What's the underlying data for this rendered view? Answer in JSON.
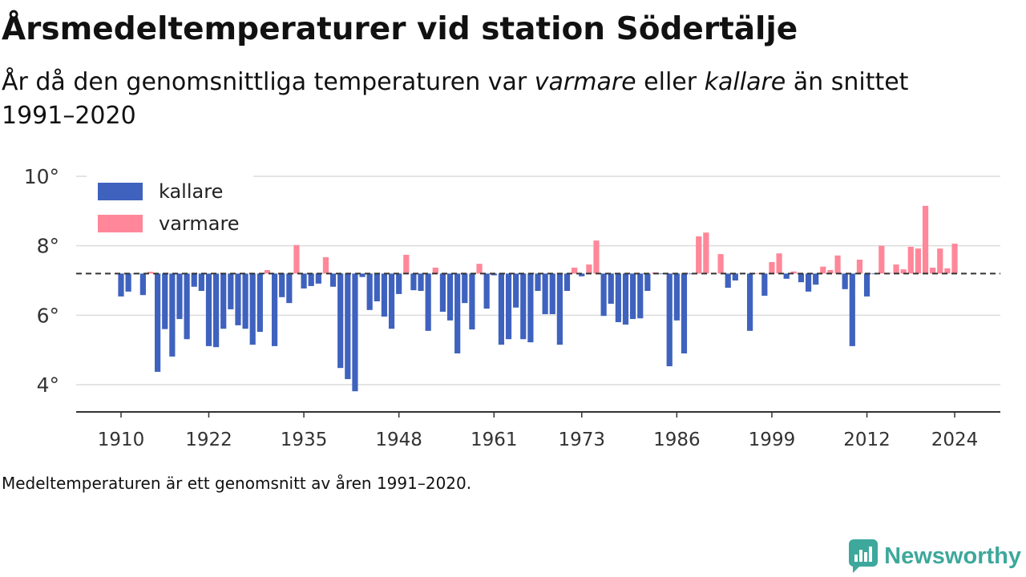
{
  "chart_data": {
    "type": "bar",
    "title": "Årsmedeltemperaturer vid station Södertälje",
    "subtitle": [
      "År då den genomsnittliga temperaturen var ",
      "varmare",
      " eller ",
      "kallare",
      " än snittet",
      "1991–2020"
    ],
    "note": "Medeltemperaturen är ett genomsnitt av åren 1991–2020.",
    "x": [
      1910,
      1911,
      1912,
      1913,
      1914,
      1915,
      1916,
      1917,
      1918,
      1919,
      1920,
      1921,
      1922,
      1923,
      1924,
      1925,
      1926,
      1927,
      1928,
      1929,
      1930,
      1931,
      1932,
      1933,
      1934,
      1935,
      1936,
      1937,
      1938,
      1939,
      1940,
      1941,
      1942,
      1943,
      1944,
      1945,
      1946,
      1947,
      1948,
      1949,
      1950,
      1951,
      1952,
      1953,
      1954,
      1955,
      1956,
      1957,
      1958,
      1959,
      1960,
      1961,
      1962,
      1963,
      1964,
      1965,
      1966,
      1967,
      1968,
      1969,
      1970,
      1971,
      1972,
      1973,
      1974,
      1975,
      1976,
      1977,
      1978,
      1979,
      1980,
      1981,
      1982,
      1983,
      1984,
      1985,
      1986,
      1987,
      1988,
      1989,
      1990,
      1991,
      1992,
      1993,
      1994,
      1995,
      1996,
      1997,
      1998,
      1999,
      2000,
      2001,
      2002,
      2003,
      2004,
      2005,
      2006,
      2007,
      2008,
      2009,
      2010,
      2011,
      2012,
      2013,
      2014,
      2015,
      2016,
      2017,
      2018,
      2019,
      2020,
      2021,
      2022,
      2023,
      2024
    ],
    "values": [
      6.54,
      6.68,
      7.18,
      6.58,
      7.25,
      4.37,
      5.6,
      4.81,
      5.89,
      5.31,
      6.82,
      6.7,
      5.11,
      5.08,
      5.61,
      6.17,
      5.71,
      5.61,
      5.15,
      5.52,
      7.3,
      5.11,
      6.52,
      6.35,
      8.02,
      6.77,
      6.84,
      6.91,
      7.67,
      6.82,
      4.48,
      4.16,
      3.81,
      7.1,
      6.15,
      6.4,
      5.96,
      5.61,
      6.61,
      7.74,
      6.72,
      6.7,
      5.55,
      7.37,
      6.1,
      5.85,
      4.9,
      6.35,
      5.59,
      7.48,
      6.19,
      7.15,
      5.15,
      5.31,
      6.22,
      5.31,
      5.22,
      6.7,
      6.03,
      6.03,
      5.15,
      6.7,
      7.37,
      7.12,
      7.46,
      8.15,
      5.98,
      6.33,
      5.8,
      5.73,
      5.89,
      5.91,
      6.7,
      7.23,
      7.19,
      4.53,
      5.85,
      4.9,
      7.18,
      8.27,
      8.38,
      7.22,
      7.76,
      6.79,
      7.0,
      7.19,
      5.55,
      7.21,
      6.56,
      7.53,
      7.78,
      7.05,
      7.26,
      6.95,
      6.68,
      6.88,
      7.4,
      7.3,
      7.72,
      6.75,
      5.11,
      7.6,
      6.54,
      7.19,
      8.0,
      7.22,
      7.46,
      7.32,
      7.97,
      7.92,
      9.15,
      7.37,
      7.92,
      7.35,
      8.06
    ],
    "baseline": 7.2,
    "ylim": [
      3.2,
      10
    ],
    "grid": true,
    "y_ticks": [
      {
        "value": 10,
        "label": "10°"
      },
      {
        "value": 8,
        "label": "8°"
      },
      {
        "value": 6,
        "label": "6°"
      },
      {
        "value": 4,
        "label": "4°"
      }
    ],
    "x_ticks": [
      {
        "value": 1910,
        "label": "1910"
      },
      {
        "value": 1922,
        "label": "1922"
      },
      {
        "value": 1935,
        "label": "1935"
      },
      {
        "value": 1948,
        "label": "1948"
      },
      {
        "value": 1961,
        "label": "1961"
      },
      {
        "value": 1973,
        "label": "1973"
      },
      {
        "value": 1986,
        "label": "1986"
      },
      {
        "value": 1999,
        "label": "1999"
      },
      {
        "value": 2012,
        "label": "2012"
      },
      {
        "value": 2024,
        "label": "2024"
      }
    ],
    "legend": {
      "placement": "top-left",
      "items": [
        {
          "label": "kallare",
          "color": "#3F62BE"
        },
        {
          "label": "varmare",
          "color": "#FF8799"
        }
      ]
    }
  },
  "brand": {
    "name": "Newsworthy",
    "color": "#3DA89B",
    "icon": "newsworthy-logo-icon"
  }
}
